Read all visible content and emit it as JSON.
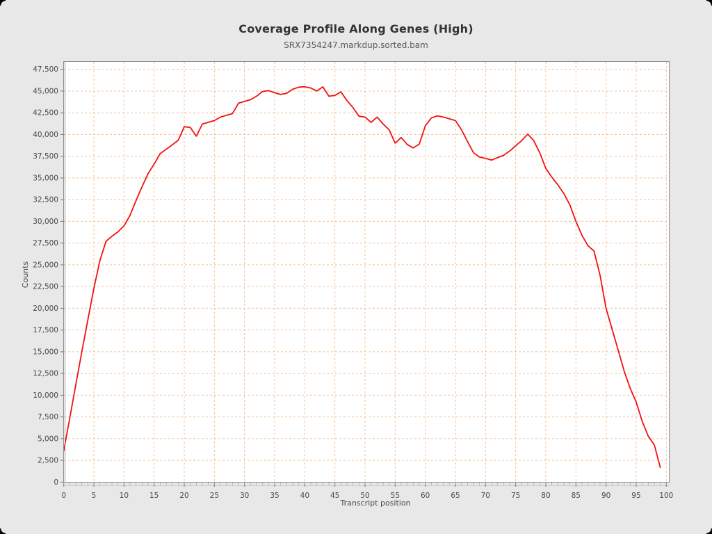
{
  "style": {
    "page_background": "#e8e8e8",
    "plot_background": "#ffffff",
    "frame_color": "#8c8c8c",
    "inner_axis_color": "#9a9a9a",
    "tick_color": "#757575",
    "minor_tick_color": "#9a9a9a",
    "tick_label_color": "#4a4a4a",
    "title_color": "#333333",
    "subtitle_color": "#5a5a5a",
    "axis_label_color": "#4a4a4a",
    "grid_color": "#f4c094",
    "line_color": "#f40f0f",
    "corner_color": "#000000"
  },
  "chart_data": {
    "type": "line",
    "title": "Coverage Profile Along Genes (High)",
    "subtitle": "SRX7354247.markdup.sorted.bam",
    "xlabel": "Transcript position",
    "ylabel": "Counts",
    "xlim": [
      0,
      100
    ],
    "ylim": [
      0,
      47500
    ],
    "x_ticks": [
      0,
      5,
      10,
      15,
      20,
      25,
      30,
      35,
      40,
      45,
      50,
      55,
      60,
      65,
      70,
      75,
      80,
      85,
      90,
      95,
      100
    ],
    "y_ticks": [
      0,
      2500,
      5000,
      7500,
      10000,
      12500,
      15000,
      17500,
      20000,
      22500,
      25000,
      27500,
      30000,
      32500,
      35000,
      37500,
      40000,
      42500,
      45000,
      47500
    ],
    "grid": {
      "show": true,
      "style": "dashed",
      "x_step": 5,
      "y_step": 2500
    },
    "legend_position": "none",
    "series": [
      {
        "name": "SRX7354247.markdup.sorted.bam",
        "x": [
          0,
          1,
          2,
          3,
          4,
          5,
          6,
          7,
          8,
          9,
          10,
          11,
          12,
          13,
          14,
          15,
          16,
          17,
          18,
          19,
          20,
          21,
          22,
          23,
          24,
          25,
          26,
          27,
          28,
          29,
          30,
          31,
          32,
          33,
          34,
          35,
          36,
          37,
          38,
          39,
          40,
          41,
          42,
          43,
          44,
          45,
          46,
          47,
          48,
          49,
          50,
          51,
          52,
          53,
          54,
          55,
          56,
          57,
          58,
          59,
          60,
          61,
          62,
          63,
          64,
          65,
          66,
          67,
          68,
          69,
          70,
          71,
          72,
          73,
          74,
          75,
          76,
          77,
          78,
          79,
          80,
          81,
          82,
          83,
          84,
          85,
          86,
          87,
          88,
          89,
          90,
          91,
          92,
          93,
          94,
          95,
          96,
          97,
          98,
          99
        ],
        "values": [
          3600,
          7400,
          11200,
          15000,
          18700,
          22300,
          25500,
          27700,
          28300,
          28800,
          29500,
          30700,
          32400,
          34000,
          35500,
          36600,
          37800,
          38300,
          38800,
          39350,
          40900,
          40800,
          39800,
          41200,
          41400,
          41600,
          42000,
          42200,
          42400,
          43600,
          43800,
          44000,
          44400,
          44950,
          45050,
          44800,
          44600,
          44750,
          45200,
          45450,
          45500,
          45350,
          45000,
          45480,
          44400,
          44500,
          44900,
          43900,
          43100,
          42100,
          42000,
          41400,
          42000,
          41200,
          40550,
          39000,
          39650,
          38850,
          38450,
          38900,
          41000,
          41900,
          42150,
          42000,
          41800,
          41600,
          40550,
          39200,
          37900,
          37400,
          37250,
          37050,
          37350,
          37600,
          38100,
          38700,
          39300,
          40050,
          39300,
          37900,
          36100,
          35100,
          34200,
          33200,
          31900,
          30000,
          28400,
          27200,
          26600,
          23800,
          20000,
          17600,
          15200,
          12800,
          10800,
          9200,
          7000,
          5300,
          4300,
          1700
        ]
      }
    ]
  }
}
